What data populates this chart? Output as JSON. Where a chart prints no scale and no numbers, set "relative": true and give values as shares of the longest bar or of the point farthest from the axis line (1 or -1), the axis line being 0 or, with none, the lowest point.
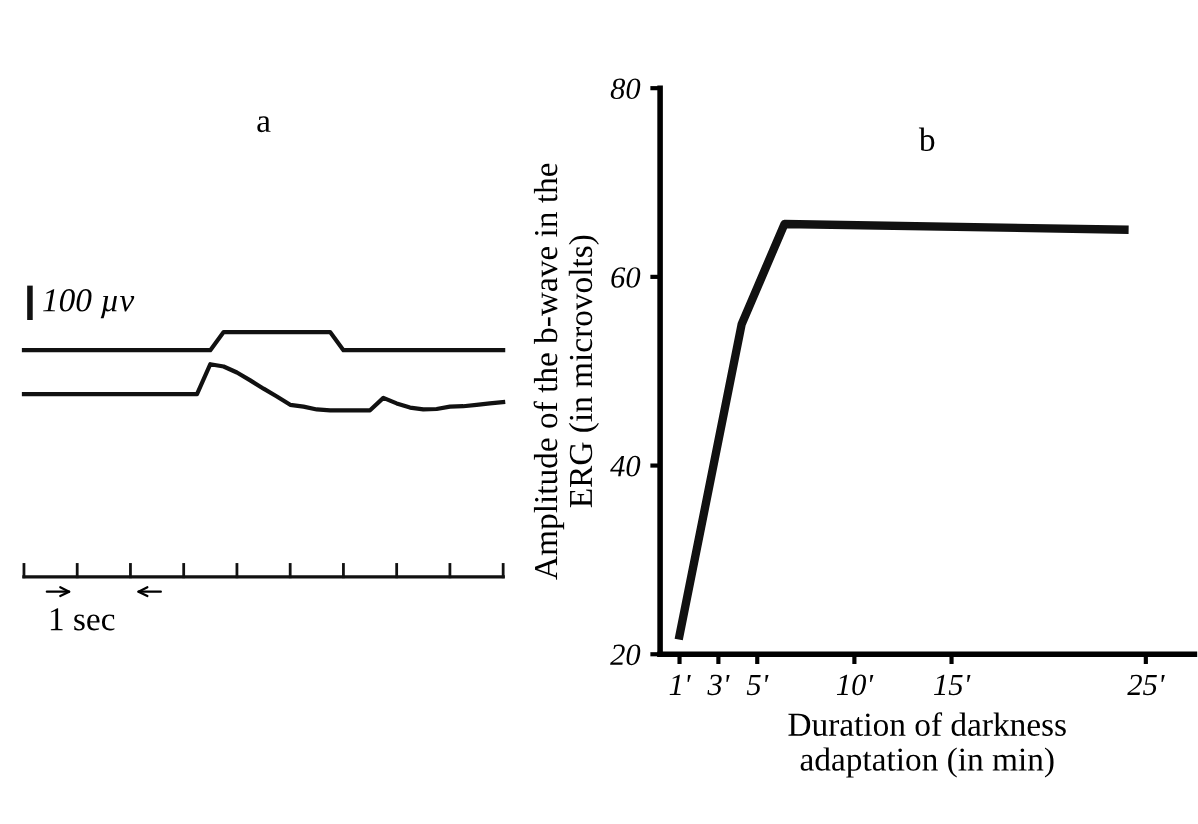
{
  "chart_data": [
    {
      "type": "line",
      "title": "a",
      "relative": true,
      "annotations": [
        "100 µv",
        "1 sec"
      ],
      "marker": "none",
      "line_style": "solid",
      "categories": [
        null,
        null,
        null,
        null,
        null,
        null,
        null,
        null,
        null,
        null,
        null,
        null,
        null,
        null,
        null,
        null,
        null,
        null,
        null,
        null,
        null,
        null,
        null,
        null,
        null,
        null,
        null,
        null,
        null,
        null,
        null,
        null,
        null,
        null,
        null,
        null,
        null
      ],
      "series": [
        {
          "color": "#111111",
          "values": [
            0,
            0,
            0,
            0,
            0,
            0,
            0,
            0,
            0,
            0,
            0,
            0,
            0,
            0,
            0,
            1,
            1,
            1,
            1,
            1,
            1,
            1,
            1,
            1,
            0,
            0,
            0,
            0,
            0,
            0,
            0,
            0,
            0,
            0,
            0,
            0,
            0
          ]
        }
      ]
    },
    {
      "type": "line",
      "relative": true,
      "marker": "none",
      "line_style": "solid",
      "categories": [
        null,
        null,
        null,
        null,
        null,
        null,
        null,
        null,
        null,
        null,
        null,
        null,
        null,
        null,
        null,
        null,
        null,
        null,
        null,
        null,
        null,
        null,
        null,
        null,
        null,
        null,
        null,
        null,
        null,
        null,
        null,
        null,
        null,
        null,
        null,
        null,
        null
      ],
      "series": [
        {
          "color": "#111111",
          "values": [
            0.35,
            0.35,
            0.35,
            0.35,
            0.35,
            0.35,
            0.35,
            0.35,
            0.35,
            0.35,
            0.35,
            0.35,
            0.35,
            0.35,
            1,
            0.95,
            0.82,
            0.65,
            0.47,
            0.3,
            0.12,
            0.08,
            0.02,
            0,
            0,
            0,
            0,
            0.27,
            0.15,
            0.06,
            0.02,
            0.03,
            0.08,
            0.09,
            0.12,
            0.15,
            0.18
          ]
        }
      ]
    },
    {
      "type": "line",
      "title": "b",
      "xlabel": "Duration of darkness\nadaptation (in min)",
      "ylabel": "Amplitude of the b-wave in the\nERG (in microvolts)",
      "x": [
        1,
        4.2,
        6.4,
        23.9
      ],
      "values": [
        22,
        55,
        65.6,
        65
      ],
      "color": "#111111",
      "xlim": [
        0,
        27.5
      ],
      "ylim": [
        20,
        80
      ],
      "xticks": [
        {
          "value": 1,
          "label": "1'"
        },
        {
          "value": 3,
          "label": "3'"
        },
        {
          "value": 5,
          "label": "5'"
        },
        {
          "value": 10,
          "label": "10'"
        },
        {
          "value": 15,
          "label": "15'"
        },
        {
          "value": 25,
          "label": "25'"
        }
      ],
      "yticks": [
        20,
        40,
        60,
        80
      ],
      "grid": false,
      "marker": "none",
      "line_style": "solid"
    }
  ]
}
